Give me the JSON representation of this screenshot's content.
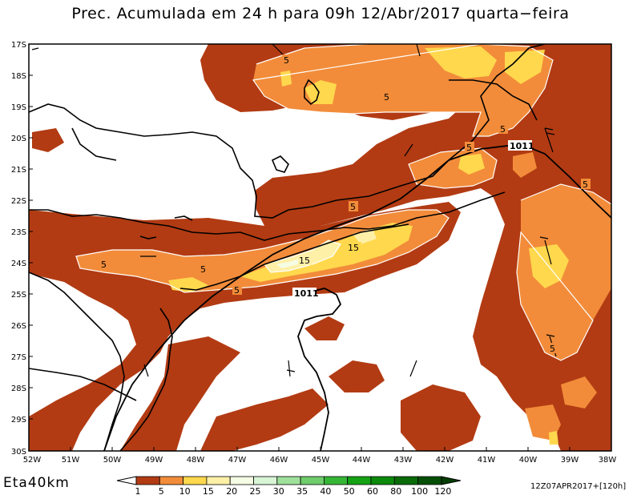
{
  "title": "Prec. Acumulada em 24 h para 09h 12/Abr/2017 quarta−feira",
  "model": "Eta40km",
  "run_info": "12Z07APR2017+[120h]",
  "lat_labels": [
    "17S",
    "18S",
    "19S",
    "20S",
    "21S",
    "22S",
    "23S",
    "24S",
    "25S",
    "26S",
    "27S",
    "28S",
    "29S",
    "30S"
  ],
  "lon_labels": [
    "52W",
    "51W",
    "50W",
    "49W",
    "48W",
    "47W",
    "46W",
    "45W",
    "44W",
    "43W",
    "42W",
    "41W",
    "40W",
    "39W",
    "38W"
  ],
  "colorbar": {
    "labels": [
      "1",
      "5",
      "10",
      "15",
      "20",
      "25",
      "30",
      "35",
      "40",
      "50",
      "60",
      "80",
      "100",
      "120"
    ],
    "colors": [
      "#ffffff",
      "#b23b13",
      "#f28c3a",
      "#ffd84d",
      "#fff0a8",
      "#f5fde4",
      "#d8f5d6",
      "#9fe09a",
      "#6fcd6b",
      "#36b636",
      "#15a315",
      "#0c8a0c",
      "#0a6b0a",
      "#064f06",
      "#033d03"
    ]
  },
  "contour_labels": {
    "precip": [
      "5",
      "5",
      "5",
      "5",
      "5",
      "5",
      "5",
      "5",
      "5",
      "15",
      "15",
      "5"
    ],
    "pressure": [
      "1011",
      "1011"
    ]
  },
  "colors": {
    "dark": "#b23b13",
    "orange": "#f28c3a",
    "yellow": "#ffd84d",
    "pale": "#fff0a8"
  }
}
